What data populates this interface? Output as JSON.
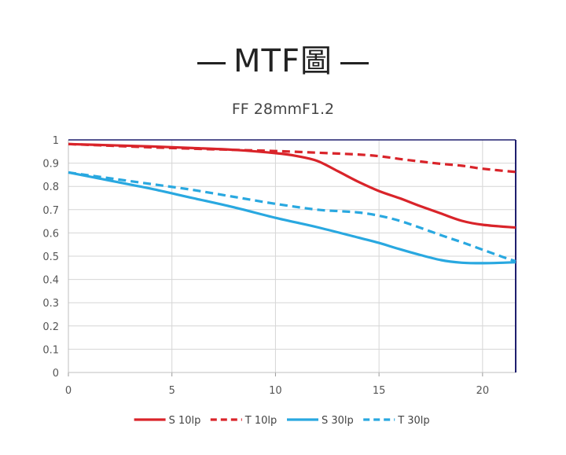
{
  "header": {
    "title": "MTF圖",
    "subtitle": "FF  28mmF1.2"
  },
  "chart_data": {
    "type": "line",
    "title": "MTF圖",
    "subtitle": "FF  28mmF1.2",
    "xlabel": "",
    "ylabel": "",
    "xlim": [
      0,
      21.6
    ],
    "ylim": [
      0,
      1
    ],
    "x_ticks": [
      "0",
      "5",
      "10",
      "15",
      "20"
    ],
    "y_ticks": [
      "0",
      "0.1",
      "0.2",
      "0.3",
      "0.4",
      "0.5",
      "0.6",
      "0.7",
      "0.8",
      "0.9",
      "1"
    ],
    "grid": true,
    "legend_position": "bottom",
    "series": [
      {
        "name": "S 10lp",
        "color": "#d9242a",
        "dash": "solid",
        "x": [
          0,
          2,
          4,
          6,
          8,
          10,
          11,
          12,
          13,
          14,
          15,
          16,
          17,
          18,
          19,
          20,
          21.6
        ],
        "y": [
          0.982,
          0.977,
          0.972,
          0.965,
          0.957,
          0.943,
          0.931,
          0.91,
          0.866,
          0.82,
          0.78,
          0.749,
          0.715,
          0.683,
          0.652,
          0.635,
          0.623
        ]
      },
      {
        "name": "T 10lp",
        "color": "#d9242a",
        "dash": "dashed",
        "x": [
          0,
          2,
          4,
          6,
          8,
          10,
          12,
          14,
          15,
          16,
          17,
          18,
          19,
          20,
          21.6
        ],
        "y": [
          0.982,
          0.975,
          0.968,
          0.962,
          0.957,
          0.952,
          0.945,
          0.937,
          0.93,
          0.918,
          0.907,
          0.897,
          0.889,
          0.876,
          0.862
        ]
      },
      {
        "name": "S 30lp",
        "color": "#29a8e0",
        "dash": "solid",
        "x": [
          0,
          2,
          4,
          6,
          8,
          10,
          12,
          14,
          15,
          16,
          17,
          18,
          19,
          20,
          21,
          21.6
        ],
        "y": [
          0.86,
          0.825,
          0.79,
          0.75,
          0.71,
          0.665,
          0.625,
          0.58,
          0.557,
          0.53,
          0.505,
          0.483,
          0.472,
          0.47,
          0.472,
          0.474
        ]
      },
      {
        "name": "T 30lp",
        "color": "#29a8e0",
        "dash": "dashed",
        "x": [
          0,
          2,
          4,
          6,
          8,
          10,
          12,
          13,
          14,
          15,
          16,
          17,
          18,
          19,
          20,
          21,
          21.6
        ],
        "y": [
          0.86,
          0.835,
          0.81,
          0.785,
          0.755,
          0.725,
          0.7,
          0.694,
          0.688,
          0.674,
          0.652,
          0.622,
          0.59,
          0.56,
          0.528,
          0.496,
          0.478
        ]
      }
    ]
  }
}
